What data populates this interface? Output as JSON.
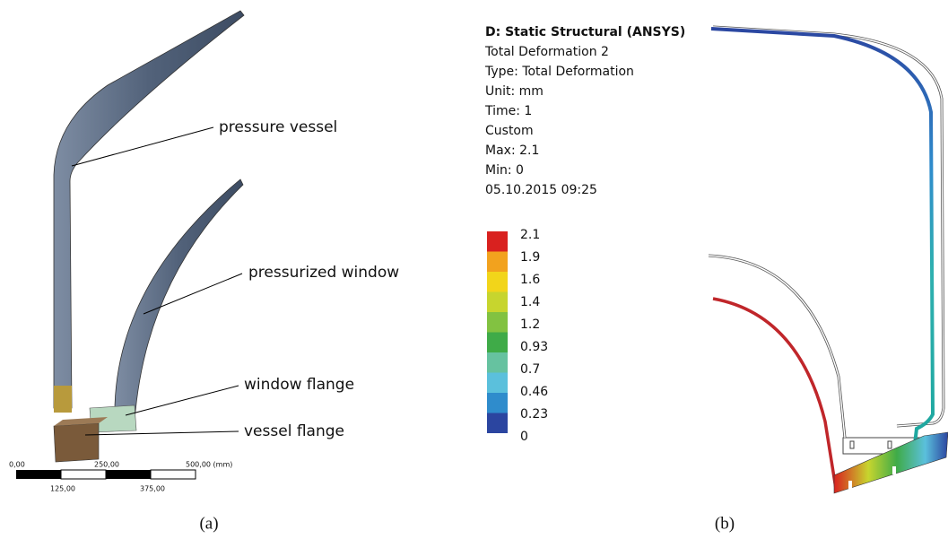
{
  "panel_a": {
    "labels": [
      "pressure vessel",
      "pressurized window",
      "window flange",
      "vessel flange"
    ],
    "scale_bar": {
      "top": [
        "0,00",
        "250,00",
        "500,00 (mm)"
      ],
      "bottom": [
        "125,00",
        "375,00"
      ]
    },
    "caption": "(a)"
  },
  "panel_b": {
    "header": [
      "D: Static Structural (ANSYS)",
      "Total Deformation 2",
      "Type: Total Deformation",
      "Unit: mm",
      "Time: 1",
      "Custom",
      "Max: 2.1",
      "Min: 0",
      "05.10.2015 09:25"
    ],
    "legend": [
      {
        "label": "2.1",
        "color": "#d9211f"
      },
      {
        "label": "1.9",
        "color": "#f2a21e"
      },
      {
        "label": "1.6",
        "color": "#f2d51a"
      },
      {
        "label": "1.4",
        "color": "#c7d52e"
      },
      {
        "label": "1.2",
        "color": "#82c241"
      },
      {
        "label": "0.93",
        "color": "#3fab48"
      },
      {
        "label": "0.7",
        "color": "#66c2a0"
      },
      {
        "label": "0.46",
        "color": "#5bc0dc"
      },
      {
        "label": "0.23",
        "color": "#2f8ccc"
      },
      {
        "label": "0",
        "color": "#2b45a0"
      }
    ],
    "caption": "(b)"
  }
}
